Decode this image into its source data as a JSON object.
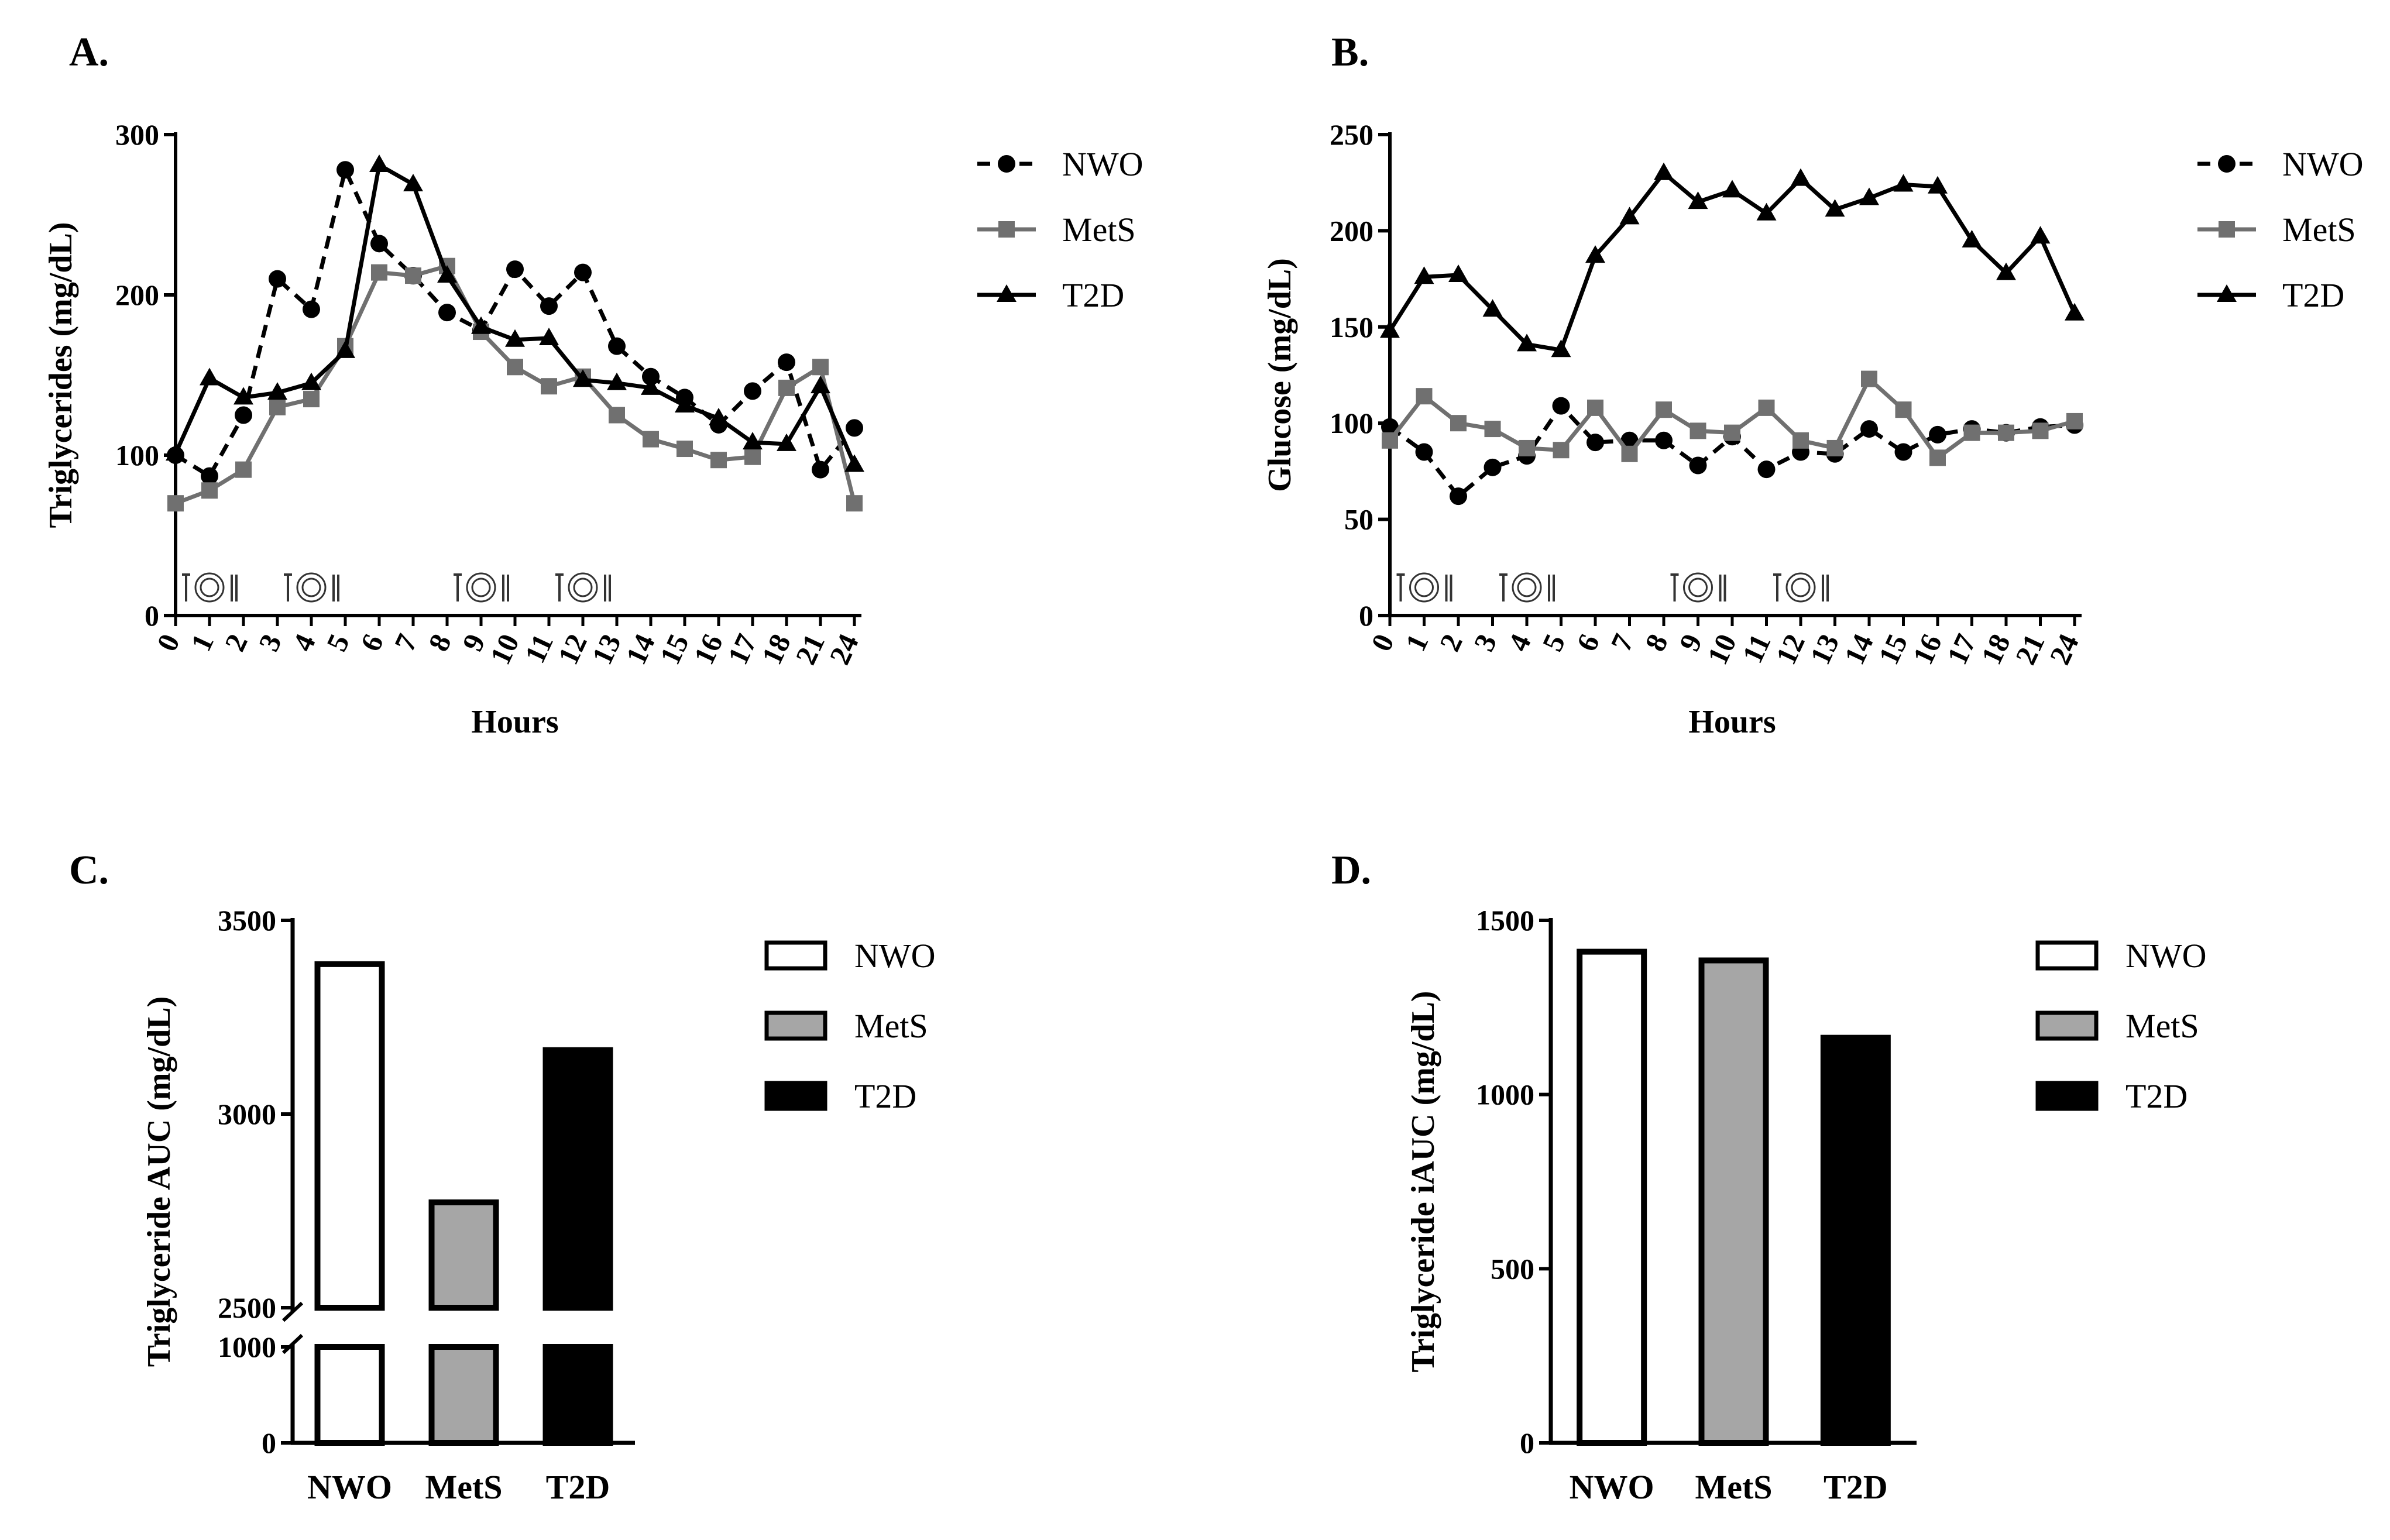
{
  "chart_data": [
    {
      "panel": "A.",
      "type": "line",
      "xlabel": "Hours",
      "ylabel": "Triglycerides (mg/dL)",
      "categories": [
        "0",
        "1",
        "2",
        "3",
        "4",
        "5",
        "6",
        "7",
        "8",
        "9",
        "10",
        "11",
        "12",
        "13",
        "14",
        "15",
        "16",
        "17",
        "18",
        "21",
        "24"
      ],
      "ylim": [
        0,
        300
      ],
      "yticks": [
        "0",
        "100",
        "200",
        "300"
      ],
      "meal_icons_at": [
        1,
        4,
        9,
        12
      ],
      "legend_position": "right",
      "series": [
        {
          "name": "NWO",
          "marker": "circle",
          "dash": true,
          "color": "#000000",
          "values": [
            100,
            87,
            125,
            210,
            191,
            278,
            232,
            212,
            189,
            178,
            216,
            193,
            214,
            168,
            149,
            136,
            119,
            140,
            158,
            91,
            117
          ]
        },
        {
          "name": "MetS",
          "marker": "square",
          "dash": false,
          "color": "#707070",
          "values": [
            70,
            78,
            91,
            130,
            135,
            168,
            214,
            212,
            218,
            177,
            155,
            143,
            149,
            125,
            110,
            104,
            97,
            99,
            142,
            155,
            70
          ]
        },
        {
          "name": "T2D",
          "marker": "triangle",
          "dash": false,
          "color": "#000000",
          "values": [
            101,
            148,
            136,
            139,
            145,
            165,
            281,
            269,
            212,
            180,
            172,
            173,
            147,
            145,
            142,
            131,
            123,
            108,
            107,
            143,
            94
          ]
        }
      ]
    },
    {
      "panel": "B.",
      "type": "line",
      "xlabel": "Hours",
      "ylabel": "Glucose (mg/dL)",
      "categories": [
        "0",
        "1",
        "2",
        "3",
        "4",
        "5",
        "6",
        "7",
        "8",
        "9",
        "10",
        "11",
        "12",
        "13",
        "14",
        "15",
        "16",
        "17",
        "18",
        "21",
        "24"
      ],
      "ylim": [
        0,
        250
      ],
      "yticks": [
        "0",
        "50",
        "100",
        "150",
        "200",
        "250"
      ],
      "meal_icons_at": [
        1,
        4,
        9,
        12
      ],
      "legend_position": "right",
      "series": [
        {
          "name": "NWO",
          "marker": "circle",
          "dash": true,
          "color": "#000000",
          "values": [
            98,
            85,
            62,
            77,
            83,
            109,
            90,
            91,
            91,
            78,
            93,
            76,
            85,
            84,
            97,
            85,
            94,
            97,
            95,
            98,
            99
          ]
        },
        {
          "name": "MetS",
          "marker": "square",
          "dash": false,
          "color": "#707070",
          "values": [
            91,
            114,
            100,
            97,
            87,
            86,
            108,
            84,
            107,
            96,
            95,
            108,
            91,
            87,
            123,
            107,
            82,
            95,
            95,
            96,
            101
          ]
        },
        {
          "name": "T2D",
          "marker": "triangle",
          "dash": false,
          "color": "#000000",
          "values": [
            148,
            176,
            177,
            159,
            141,
            138,
            187,
            207,
            230,
            215,
            221,
            209,
            227,
            211,
            217,
            224,
            223,
            195,
            178,
            197,
            157
          ]
        }
      ]
    },
    {
      "panel": "C.",
      "type": "bar",
      "ylabel": "Triglyceride AUC (mg/dL)",
      "categories": [
        "NWO",
        "MetS",
        "T2D"
      ],
      "values": [
        3387,
        2772,
        3165
      ],
      "fills": [
        "#ffffff",
        "#a6a6a6",
        "#000000"
      ],
      "broken_axis": {
        "lower": [
          0,
          1000
        ],
        "upper": [
          2500,
          3500
        ]
      },
      "yticks_lower": [
        "0",
        "1000"
      ],
      "yticks_upper": [
        "2500",
        "3000",
        "3500"
      ],
      "legend_position": "right",
      "legend": [
        "NWO",
        "MetS",
        "T2D"
      ]
    },
    {
      "panel": "D.",
      "type": "bar",
      "ylabel": "Triglyceride iAUC (mg/dL)",
      "categories": [
        "NWO",
        "MetS",
        "T2D"
      ],
      "values": [
        1410,
        1385,
        1163
      ],
      "fills": [
        "#ffffff",
        "#a6a6a6",
        "#000000"
      ],
      "ylim": [
        0,
        1500
      ],
      "yticks": [
        "0",
        "500",
        "1000",
        "1500"
      ],
      "legend_position": "right",
      "legend": [
        "NWO",
        "MetS",
        "T2D"
      ]
    }
  ]
}
